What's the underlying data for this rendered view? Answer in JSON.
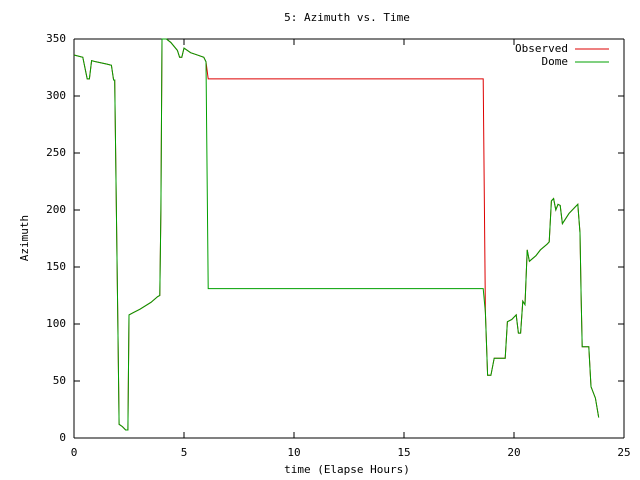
{
  "chart_data": {
    "type": "line",
    "title": "5: Azimuth vs. Time",
    "x_label": "time (Elapse Hours)",
    "y_label": "Azimuth",
    "x": [
      0,
      0.4,
      0.6,
      0.7,
      0.8,
      1.0,
      1.5,
      1.7,
      1.8,
      1.85,
      2.0,
      2.05,
      2.2,
      2.35,
      2.45,
      2.5,
      2.7,
      3.0,
      3.5,
      3.8,
      3.9,
      3.95,
      4.0,
      4.2,
      4.4,
      4.7,
      4.8,
      4.9,
      5.0,
      5.3,
      5.6,
      5.9,
      6.0,
      6.1,
      18.6,
      18.7,
      18.8,
      18.95,
      19.1,
      19.6,
      19.7,
      19.9,
      20.1,
      20.2,
      20.3,
      20.4,
      20.5,
      20.6,
      20.7,
      21.0,
      21.2,
      21.5,
      21.6,
      21.7,
      21.8,
      21.9,
      22.0,
      22.1,
      22.2,
      22.5,
      22.9,
      23.0,
      23.05,
      23.1,
      23.4,
      23.5,
      23.7,
      23.85
    ],
    "series": [
      {
        "name": "Observed",
        "color": "#dd0000",
        "values": [
          336,
          334,
          315,
          315,
          331,
          330,
          328,
          327,
          314,
          314,
          90,
          12,
          10,
          7,
          7,
          108,
          110,
          113,
          119,
          124,
          125,
          200,
          350,
          350,
          347,
          340,
          334,
          334,
          342,
          338,
          336,
          334,
          330,
          315,
          315,
          110,
          55,
          55,
          70,
          70,
          102,
          104,
          108,
          92,
          92,
          120,
          117,
          165,
          155,
          160,
          165,
          170,
          172,
          208,
          210,
          200,
          205,
          204,
          188,
          197,
          205,
          180,
          125,
          80,
          80,
          45,
          35,
          18
        ]
      },
      {
        "name": "Dome",
        "color": "#00a000",
        "values": [
          336,
          334,
          315,
          315,
          331,
          330,
          328,
          327,
          314,
          314,
          90,
          12,
          10,
          7,
          7,
          108,
          110,
          113,
          119,
          124,
          125,
          200,
          350,
          350,
          347,
          340,
          334,
          334,
          342,
          338,
          336,
          334,
          330,
          131,
          131,
          110,
          55,
          55,
          70,
          70,
          102,
          104,
          108,
          92,
          92,
          120,
          117,
          165,
          155,
          160,
          165,
          170,
          172,
          208,
          210,
          200,
          205,
          204,
          188,
          197,
          205,
          180,
          125,
          80,
          80,
          45,
          35,
          18
        ]
      }
    ],
    "xlim": [
      0,
      25
    ],
    "xticks": [
      0,
      5,
      10,
      15,
      20,
      25
    ],
    "ylim": [
      0,
      350
    ],
    "yticks": [
      0,
      50,
      100,
      150,
      200,
      250,
      300,
      350
    ],
    "legend": "top-right",
    "grid": false
  }
}
